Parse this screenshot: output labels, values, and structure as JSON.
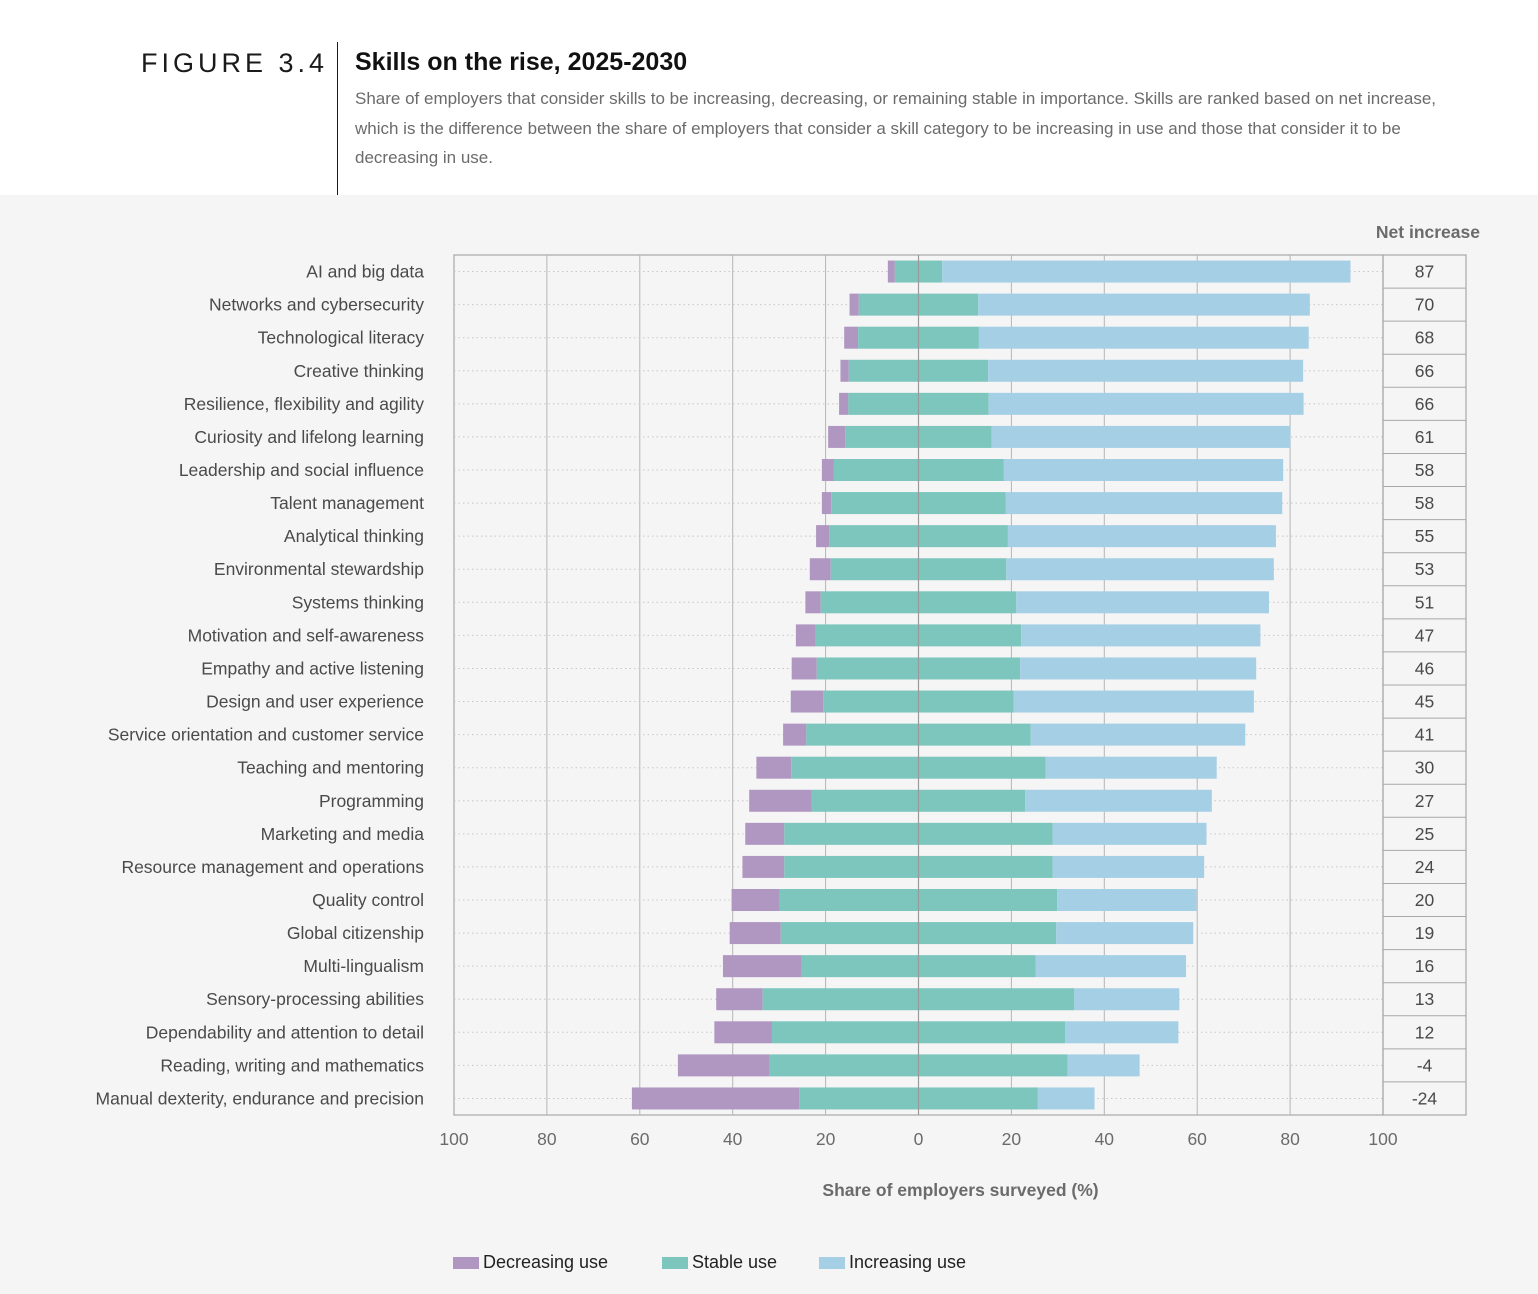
{
  "figure": {
    "label": "FIGURE 3.4",
    "title": "Skills on the rise, 2025-2030",
    "subtitle": "Share of employers that consider skills to be increasing, decreasing, or remaining stable in importance. Skills are ranked based on net increase, which is the difference between the share of employers that consider a skill category to be increasing in use and those that consider it to be decreasing in use."
  },
  "colors": {
    "decreasing": "#b097c1",
    "stable": "#7cc6bd",
    "increasing": "#a5cfe5"
  },
  "chart_data": {
    "type": "bar",
    "orientation": "horizontal-diverging",
    "xlabel": "Share of employers surveyed (%)",
    "net_header": "Net increase",
    "xlim": [
      -100,
      100
    ],
    "xticks": [
      "100",
      "80",
      "60",
      "40",
      "20",
      "0",
      "20",
      "40",
      "60",
      "80",
      "100"
    ],
    "categories": [
      "AI and big data",
      "Networks and cybersecurity",
      "Technological literacy",
      "Creative thinking",
      "Resilience, flexibility and agility",
      "Curiosity and lifelong learning",
      "Leadership and social influence",
      "Talent management",
      "Analytical thinking",
      "Environmental stewardship",
      "Systems thinking",
      "Motivation and self-awareness",
      "Empathy and active listening",
      "Design and user experience",
      "Service orientation and customer service",
      "Teaching and mentoring",
      "Programming",
      "Marketing and media",
      "Resource management and operations",
      "Quality control",
      "Global citizenship",
      "Multi-lingualism",
      "Sensory-processing abilities",
      "Dependability and attention to detail",
      "Reading, writing and mathematics",
      "Manual dexterity, endurance and precision"
    ],
    "series": [
      {
        "name": "Decreasing use",
        "values": [
          1.5,
          2,
          3,
          1.8,
          2,
          3.7,
          2.5,
          2,
          2.8,
          4.5,
          3.3,
          4.3,
          5.4,
          7,
          5,
          7.5,
          13.5,
          8.4,
          9,
          10.4,
          11,
          16.9,
          10,
          12.4,
          19.7,
          36
        ]
      },
      {
        "name": "Stable use",
        "values": [
          10.2,
          25.7,
          26,
          30,
          30.2,
          31.5,
          36.6,
          37.6,
          38.5,
          37.8,
          42.1,
          44.2,
          43.8,
          41,
          48.3,
          54.8,
          45.9,
          57.8,
          57.8,
          59.7,
          59.3,
          50.4,
          67.1,
          63.1,
          64.2,
          51.4
        ]
      },
      {
        "name": "Increasing use",
        "values": [
          87.9,
          71.4,
          71,
          67.8,
          67.8,
          64.3,
          60.2,
          59.5,
          57.7,
          57.6,
          54.4,
          51.5,
          50.8,
          51.7,
          46.2,
          36.8,
          40.2,
          33.1,
          32.6,
          30,
          29.5,
          32.4,
          22.6,
          24.4,
          15.5,
          12.2
        ]
      }
    ],
    "net_increase": [
      87,
      70,
      68,
      66,
      66,
      61,
      58,
      58,
      55,
      53,
      51,
      47,
      46,
      45,
      41,
      30,
      27,
      25,
      24,
      20,
      19,
      16,
      13,
      12,
      -4,
      -24
    ],
    "legend": [
      "Decreasing use",
      "Stable use",
      "Increasing use"
    ],
    "legend_position": "bottom"
  }
}
